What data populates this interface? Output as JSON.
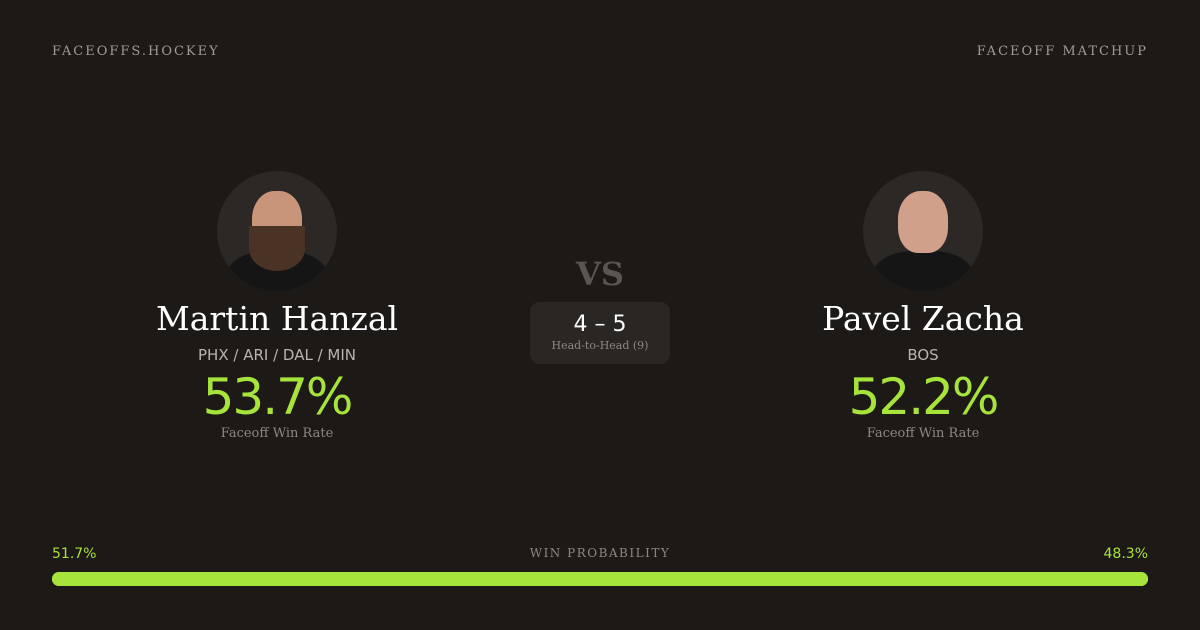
{
  "header": {
    "brand": "FACEOFFS.HOCKEY",
    "page_type": "FACEOFF MATCHUP"
  },
  "player1": {
    "name": "Martin Hanzal",
    "teams": "PHX / ARI / DAL / MIN",
    "win_rate": "53.7%",
    "win_rate_label": "Faceoff Win Rate"
  },
  "player2": {
    "name": "Pavel Zacha",
    "teams": "BOS",
    "win_rate": "52.2%",
    "win_rate_label": "Faceoff Win Rate"
  },
  "versus": "VS",
  "head_to_head": {
    "score": "4 – 5",
    "label": "Head-to-Head (9)"
  },
  "win_probability": {
    "label": "WIN PROBABILITY",
    "left": "51.7%",
    "right": "48.3%",
    "left_value": 51.7,
    "right_value": 48.3
  },
  "colors": {
    "accent": "#a6e33b",
    "background": "#1d1917"
  }
}
